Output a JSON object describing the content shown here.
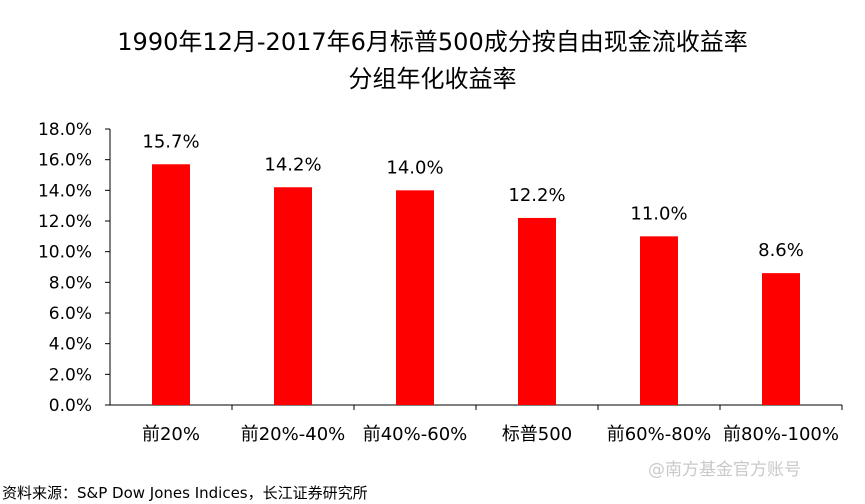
{
  "title": {
    "line1": "1990年12月-2017年6月标普500成分按自由现金流收益率",
    "line2": "分组年化收益率"
  },
  "source": "资料来源：S&P Dow Jones Indices，长江证券研究所",
  "watermark": "@南方基金官方账号",
  "colors": {
    "bar": "#ff0000",
    "axis": "#000000"
  },
  "chart_data": {
    "type": "bar",
    "title": "1990年12月-2017年6月标普500成分按自由现金流收益率 分组年化收益率",
    "xlabel": "",
    "ylabel": "",
    "categories": [
      "前20%",
      "前20%-40%",
      "前40%-60%",
      "标普500",
      "前60%-80%",
      "前80%-100%"
    ],
    "values": [
      15.7,
      14.2,
      14.0,
      12.2,
      11.0,
      8.6
    ],
    "data_labels": [
      "15.7%",
      "14.2%",
      "14.0%",
      "12.2%",
      "11.0%",
      "8.6%"
    ],
    "ylim": [
      0,
      18
    ],
    "y_ticks": [
      0,
      2,
      4,
      6,
      8,
      10,
      12,
      14,
      16,
      18
    ],
    "y_tick_labels": [
      "0.0%",
      "2.0%",
      "4.0%",
      "6.0%",
      "8.0%",
      "10.0%",
      "12.0%",
      "14.0%",
      "16.0%",
      "18.0%"
    ],
    "grid": false,
    "legend": "none"
  }
}
